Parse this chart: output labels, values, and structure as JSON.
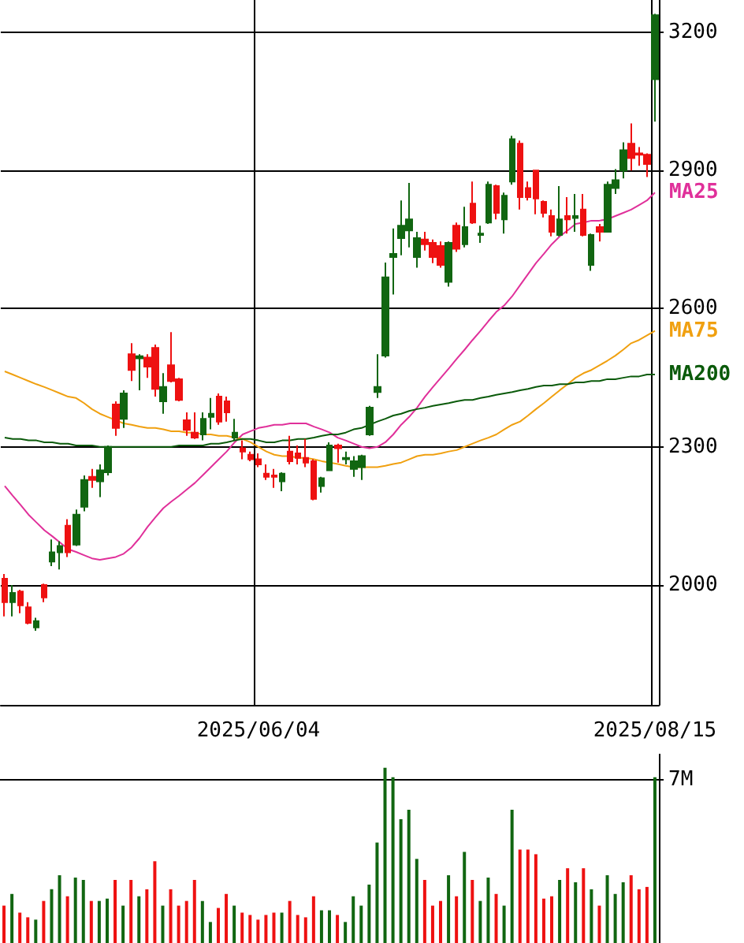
{
  "chart_data": [
    {
      "type": "candlestick",
      "grid": true,
      "legend": false,
      "marker": "none",
      "categories": [
        null,
        null,
        null,
        null,
        null,
        null,
        null,
        null,
        null,
        null,
        null,
        null,
        null,
        null,
        null,
        null,
        null,
        null,
        null,
        null,
        null,
        null,
        null,
        null,
        null,
        null,
        null,
        null,
        null,
        null,
        null,
        null,
        "2025/06/04",
        null,
        null,
        null,
        null,
        null,
        null,
        null,
        null,
        null,
        null,
        null,
        null,
        null,
        null,
        null,
        null,
        null,
        null,
        null,
        null,
        null,
        null,
        null,
        null,
        null,
        null,
        null,
        null,
        null,
        null,
        null,
        null,
        null,
        null,
        null,
        null,
        null,
        null,
        null,
        null,
        null,
        null,
        null,
        null,
        null,
        null,
        null,
        null,
        null,
        "2025/08/15"
      ],
      "ohlc": [
        [
          2014,
          2024,
          1932,
          1963
        ],
        [
          1963,
          2000,
          1932,
          1983
        ],
        [
          1986,
          1990,
          1939,
          1956
        ],
        [
          1952,
          1963,
          1915,
          1918
        ],
        [
          1908,
          1929,
          1901,
          1922
        ],
        [
          2000,
          2003,
          1963,
          1973
        ],
        [
          2051,
          2099,
          2041,
          2071
        ],
        [
          2071,
          2095,
          2034,
          2085
        ],
        [
          2129,
          2143,
          2061,
          2071
        ],
        [
          2088,
          2164,
          2085,
          2153
        ],
        [
          2170,
          2238,
          2160,
          2228
        ],
        [
          2235,
          2252,
          2211,
          2228
        ],
        [
          2225,
          2262,
          2191,
          2249
        ],
        [
          2245,
          2303,
          2238,
          2300
        ],
        [
          2392,
          2399,
          2324,
          2341
        ],
        [
          2361,
          2423,
          2341,
          2416
        ],
        [
          2501,
          2525,
          2443,
          2467
        ],
        [
          2492,
          2501,
          2423,
          2497
        ],
        [
          2494,
          2501,
          2450,
          2474
        ],
        [
          2515,
          2522,
          2409,
          2426
        ],
        [
          2399,
          2460,
          2372,
          2430
        ],
        [
          2477,
          2549,
          2440,
          2443
        ],
        [
          2447,
          2450,
          2399,
          2402
        ],
        [
          2358,
          2375,
          2324,
          2337
        ],
        [
          2331,
          2375,
          2317,
          2320
        ],
        [
          2327,
          2375,
          2314,
          2361
        ],
        [
          2365,
          2406,
          2338,
          2372
        ],
        [
          2409,
          2416,
          2348,
          2355
        ],
        [
          2399,
          2409,
          2355,
          2375
        ],
        [
          2320,
          2361,
          2314,
          2331
        ],
        [
          2297,
          2314,
          2273,
          2290
        ],
        [
          2283,
          2290,
          2269,
          2273
        ],
        [
          2273,
          2286,
          2256,
          2262
        ],
        [
          2242,
          2262,
          2228,
          2235
        ],
        [
          2238,
          2252,
          2211,
          2235
        ],
        [
          2225,
          2245,
          2204,
          2242
        ],
        [
          2290,
          2324,
          2262,
          2269
        ],
        [
          2286,
          2303,
          2262,
          2276
        ],
        [
          2276,
          2317,
          2256,
          2266
        ],
        [
          2269,
          2273,
          2184,
          2187
        ],
        [
          2215,
          2235,
          2201,
          2232
        ],
        [
          2249,
          2310,
          2249,
          2303
        ],
        [
          2303,
          2307,
          2266,
          2297
        ],
        [
          2273,
          2290,
          2262,
          2276
        ],
        [
          2252,
          2280,
          2235,
          2269
        ],
        [
          2256,
          2283,
          2228,
          2280
        ],
        [
          2327,
          2389,
          2324,
          2385
        ],
        [
          2419,
          2501,
          2406,
          2430
        ],
        [
          2498,
          2700,
          2494,
          2668
        ],
        [
          2712,
          2774,
          2631,
          2719
        ],
        [
          2753,
          2835,
          2716,
          2780
        ],
        [
          2770,
          2873,
          2733,
          2794
        ],
        [
          2712,
          2767,
          2689,
          2753
        ],
        [
          2750,
          2767,
          2726,
          2740
        ],
        [
          2743,
          2750,
          2699,
          2712
        ],
        [
          2736,
          2746,
          2689,
          2695
        ],
        [
          2658,
          2746,
          2648,
          2743
        ],
        [
          2780,
          2787,
          2723,
          2730
        ],
        [
          2740,
          2821,
          2733,
          2777
        ],
        [
          2828,
          2876,
          2784,
          2787
        ],
        [
          2760,
          2780,
          2743,
          2763
        ],
        [
          2787,
          2876,
          2784,
          2869
        ],
        [
          2866,
          2869,
          2794,
          2808
        ],
        [
          2794,
          2852,
          2763,
          2845
        ],
        [
          2876,
          2975,
          2869,
          2968
        ],
        [
          2958,
          2965,
          2815,
          2842
        ],
        [
          2862,
          2876,
          2835,
          2842
        ],
        [
          2900,
          2900,
          2805,
          2839
        ],
        [
          2832,
          2835,
          2798,
          2808
        ],
        [
          2801,
          2815,
          2757,
          2767
        ],
        [
          2760,
          2866,
          2757,
          2794
        ],
        [
          2801,
          2842,
          2763,
          2794
        ],
        [
          2797,
          2849,
          2767,
          2801
        ],
        [
          2815,
          2849,
          2757,
          2760
        ],
        [
          2695,
          2763,
          2682,
          2760
        ],
        [
          2777,
          2784,
          2746,
          2767
        ],
        [
          2767,
          2876,
          2767,
          2869
        ],
        [
          2862,
          2903,
          2849,
          2879
        ],
        [
          2900,
          2961,
          2883,
          2944
        ],
        [
          2958,
          3002,
          2900,
          2927
        ],
        [
          2937,
          2951,
          2910,
          2934
        ],
        [
          2934,
          2937,
          2886,
          2914
        ],
        [
          3098,
          3240,
          3006,
          3237
        ]
      ],
      "colors": [
        "#ee1111",
        "#116611",
        "#ee1111",
        "#ee1111",
        "#116611",
        "#ee1111",
        "#116611",
        "#116611",
        "#ee1111",
        "#116611",
        "#116611",
        "#ee1111",
        "#116611",
        "#116611",
        "#ee1111",
        "#116611",
        "#ee1111",
        "#116611",
        "#ee1111",
        "#ee1111",
        "#116611",
        "#ee1111",
        "#ee1111",
        "#ee1111",
        "#ee1111",
        "#116611",
        "#116611",
        "#ee1111",
        "#ee1111",
        "#116611",
        "#ee1111",
        "#ee1111",
        "#ee1111",
        "#ee1111",
        "#ee1111",
        "#116611",
        "#ee1111",
        "#ee1111",
        "#ee1111",
        "#ee1111",
        "#116611",
        "#116611",
        "#ee1111",
        "#116611",
        "#116611",
        "#116611",
        "#116611",
        "#116611",
        "#116611",
        "#116611",
        "#116611",
        "#116611",
        "#116611",
        "#ee1111",
        "#ee1111",
        "#ee1111",
        "#116611",
        "#ee1111",
        "#116611",
        "#ee1111",
        "#116611",
        "#116611",
        "#ee1111",
        "#116611",
        "#116611",
        "#ee1111",
        "#ee1111",
        "#ee1111",
        "#ee1111",
        "#ee1111",
        "#116611",
        "#ee1111",
        "#116611",
        "#ee1111",
        "#116611",
        "#ee1111",
        "#116611",
        "#116611",
        "#116611",
        "#ee1111",
        "#ee1111",
        "#ee1111",
        "#116611"
      ],
      "series": [
        {
          "type": "line",
          "name": "MA25",
          "color": "#e0309a",
          "values": [
            2215,
            2194,
            2174,
            2153,
            2136,
            2119,
            2106,
            2092,
            2078,
            2072,
            2065,
            2058,
            2055,
            2058,
            2061,
            2068,
            2082,
            2102,
            2126,
            2147,
            2167,
            2181,
            2194,
            2208,
            2222,
            2239,
            2256,
            2273,
            2290,
            2310,
            2327,
            2334,
            2341,
            2344,
            2348,
            2348,
            2351,
            2351,
            2351,
            2344,
            2338,
            2331,
            2320,
            2314,
            2307,
            2300,
            2297,
            2300,
            2310,
            2327,
            2348,
            2365,
            2385,
            2409,
            2430,
            2450,
            2470,
            2491,
            2511,
            2532,
            2552,
            2573,
            2593,
            2607,
            2627,
            2651,
            2675,
            2699,
            2719,
            2740,
            2757,
            2770,
            2784,
            2787,
            2791,
            2791,
            2794,
            2801,
            2808,
            2815,
            2825,
            2835,
            2852
          ]
        },
        {
          "type": "line",
          "name": "MA75",
          "color": "#f0a010",
          "values": [
            2464,
            2457,
            2450,
            2443,
            2436,
            2430,
            2423,
            2416,
            2409,
            2406,
            2395,
            2382,
            2372,
            2365,
            2358,
            2351,
            2348,
            2344,
            2341,
            2341,
            2338,
            2334,
            2334,
            2331,
            2331,
            2327,
            2327,
            2324,
            2324,
            2320,
            2317,
            2310,
            2300,
            2290,
            2283,
            2280,
            2280,
            2276,
            2276,
            2273,
            2269,
            2266,
            2263,
            2259,
            2256,
            2256,
            2256,
            2256,
            2259,
            2263,
            2266,
            2273,
            2280,
            2283,
            2283,
            2286,
            2290,
            2293,
            2300,
            2307,
            2314,
            2320,
            2327,
            2338,
            2348,
            2355,
            2368,
            2382,
            2395,
            2409,
            2423,
            2436,
            2450,
            2460,
            2467,
            2477,
            2487,
            2498,
            2511,
            2525,
            2532,
            2542,
            2552
          ]
        },
        {
          "type": "line",
          "name": "MA200",
          "color": "#0a5a0a",
          "values": [
            2320,
            2317,
            2317,
            2314,
            2314,
            2310,
            2310,
            2307,
            2307,
            2303,
            2303,
            2303,
            2300,
            2300,
            2300,
            2300,
            2300,
            2300,
            2300,
            2300,
            2300,
            2300,
            2303,
            2303,
            2303,
            2303,
            2307,
            2307,
            2310,
            2314,
            2317,
            2317,
            2314,
            2310,
            2310,
            2314,
            2314,
            2317,
            2317,
            2320,
            2324,
            2327,
            2327,
            2331,
            2338,
            2341,
            2348,
            2355,
            2361,
            2368,
            2372,
            2378,
            2382,
            2385,
            2389,
            2392,
            2395,
            2399,
            2402,
            2402,
            2406,
            2409,
            2413,
            2416,
            2419,
            2423,
            2426,
            2430,
            2433,
            2433,
            2436,
            2436,
            2440,
            2440,
            2443,
            2443,
            2447,
            2447,
            2450,
            2453,
            2453,
            2457,
            2457
          ]
        }
      ],
      "ylim": [
        1740,
        3270
      ],
      "yticks": [
        2000,
        2300,
        2600,
        2900,
        3200
      ]
    },
    {
      "type": "bar",
      "grid": "y",
      "legend": false,
      "tick_labels": "y",
      "categories": [
        null,
        null,
        null,
        null,
        null,
        null,
        null,
        null,
        null,
        null,
        null,
        null,
        null,
        null,
        null,
        null,
        null,
        null,
        null,
        null,
        null,
        null,
        null,
        null,
        null,
        null,
        null,
        null,
        null,
        null,
        null,
        null,
        "2025/06/04",
        null,
        null,
        null,
        null,
        null,
        null,
        null,
        null,
        null,
        null,
        null,
        null,
        null,
        null,
        null,
        null,
        null,
        null,
        null,
        null,
        null,
        null,
        null,
        null,
        null,
        null,
        null,
        null,
        null,
        null,
        null,
        null,
        null,
        null,
        null,
        null,
        null,
        null,
        null,
        null,
        null,
        null,
        null,
        null,
        null,
        null,
        null,
        null,
        null,
        "2025/08/15"
      ],
      "values": [
        1.6,
        2.1,
        1.3,
        1.1,
        1.0,
        1.8,
        2.3,
        2.9,
        2.0,
        2.8,
        2.7,
        1.8,
        1.8,
        1.9,
        2.7,
        1.6,
        2.7,
        2.0,
        2.3,
        3.5,
        1.6,
        2.3,
        1.6,
        1.8,
        2.7,
        1.8,
        0.9,
        1.5,
        2.1,
        1.6,
        1.3,
        1.2,
        1.0,
        1.2,
        1.3,
        1.3,
        1.8,
        1.2,
        1.1,
        2.0,
        1.4,
        1.4,
        1.2,
        0.9,
        2.0,
        1.6,
        2.5,
        4.3,
        7.5,
        7.1,
        5.3,
        5.7,
        3.6,
        2.7,
        1.6,
        1.8,
        2.9,
        2.0,
        3.9,
        2.7,
        1.8,
        2.8,
        2.1,
        1.6,
        5.7,
        4.0,
        4.0,
        3.8,
        1.9,
        2.0,
        2.7,
        3.2,
        2.6,
        3.2,
        2.3,
        1.6,
        2.9,
        2.1,
        2.6,
        2.9,
        2.3,
        2.4,
        7.1
      ],
      "colors": [
        "#ee1111",
        "#116611",
        "#ee1111",
        "#ee1111",
        "#116611",
        "#ee1111",
        "#116611",
        "#116611",
        "#ee1111",
        "#116611",
        "#116611",
        "#ee1111",
        "#116611",
        "#116611",
        "#ee1111",
        "#116611",
        "#ee1111",
        "#116611",
        "#ee1111",
        "#ee1111",
        "#116611",
        "#ee1111",
        "#ee1111",
        "#ee1111",
        "#ee1111",
        "#116611",
        "#116611",
        "#ee1111",
        "#ee1111",
        "#116611",
        "#ee1111",
        "#ee1111",
        "#ee1111",
        "#ee1111",
        "#ee1111",
        "#116611",
        "#ee1111",
        "#ee1111",
        "#ee1111",
        "#ee1111",
        "#116611",
        "#116611",
        "#ee1111",
        "#116611",
        "#116611",
        "#116611",
        "#116611",
        "#116611",
        "#116611",
        "#116611",
        "#116611",
        "#116611",
        "#116611",
        "#ee1111",
        "#ee1111",
        "#ee1111",
        "#116611",
        "#ee1111",
        "#116611",
        "#ee1111",
        "#116611",
        "#116611",
        "#ee1111",
        "#116611",
        "#116611",
        "#ee1111",
        "#ee1111",
        "#ee1111",
        "#ee1111",
        "#ee1111",
        "#116611",
        "#ee1111",
        "#116611",
        "#ee1111",
        "#116611",
        "#ee1111",
        "#116611",
        "#116611",
        "#116611",
        "#ee1111",
        "#ee1111",
        "#ee1111",
        "#116611"
      ],
      "ylim": [
        0,
        8.1
      ],
      "yticks": [
        {
          "value": 0,
          "label": null
        },
        {
          "value": 7,
          "label": "7M"
        }
      ]
    }
  ]
}
